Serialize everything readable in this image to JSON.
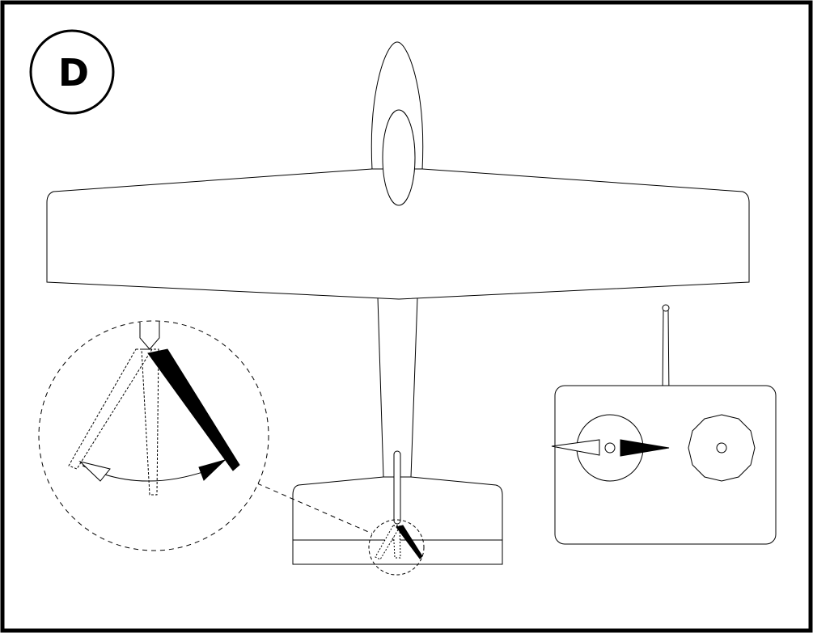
{
  "step_badge": {
    "label": "D"
  },
  "colors": {
    "line": "#000000",
    "paper": "#ffffff",
    "fill": "#000000"
  },
  "icons": {
    "airplane": "airplane-top-view-icon",
    "rudder_detail": "rudder-deflection-detail-icon",
    "transmitter": "radio-transmitter-icon",
    "stick_arrow": "stick-direction-arrow-icon"
  }
}
